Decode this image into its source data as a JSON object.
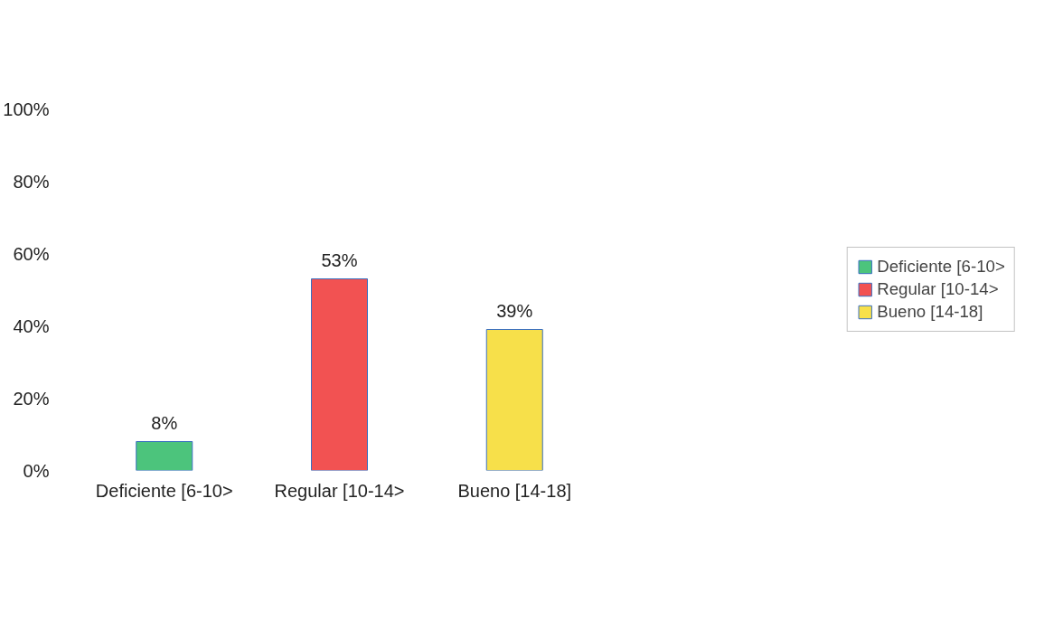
{
  "chart_data": {
    "type": "bar",
    "categories": [
      "Deficiente [6-10>",
      "Regular [10-14>",
      "Bueno [14-18]"
    ],
    "stacked": true,
    "series": [
      {
        "name": "Deficiente [6-10>",
        "color": "#4cc47c",
        "values": [
          8,
          null,
          null
        ],
        "value_labels": [
          "8%",
          null,
          null
        ]
      },
      {
        "name": "Regular [10-14>",
        "color": "#f25252",
        "values": [
          null,
          53,
          null
        ],
        "value_labels": [
          null,
          "53%",
          null
        ]
      },
      {
        "name": "Bueno [14-18]",
        "color": "#f7e04a",
        "values": [
          null,
          null,
          39
        ],
        "value_labels": [
          null,
          null,
          "39%"
        ]
      }
    ],
    "ylim": [
      0,
      100
    ],
    "yticks": [
      {
        "value": 0,
        "label": "0%"
      },
      {
        "value": 20,
        "label": "20%"
      },
      {
        "value": 40,
        "label": "40%"
      },
      {
        "value": 60,
        "label": "60%"
      },
      {
        "value": 80,
        "label": "80%"
      },
      {
        "value": 100,
        "label": "100%"
      }
    ],
    "grid": false,
    "legend": "right"
  }
}
